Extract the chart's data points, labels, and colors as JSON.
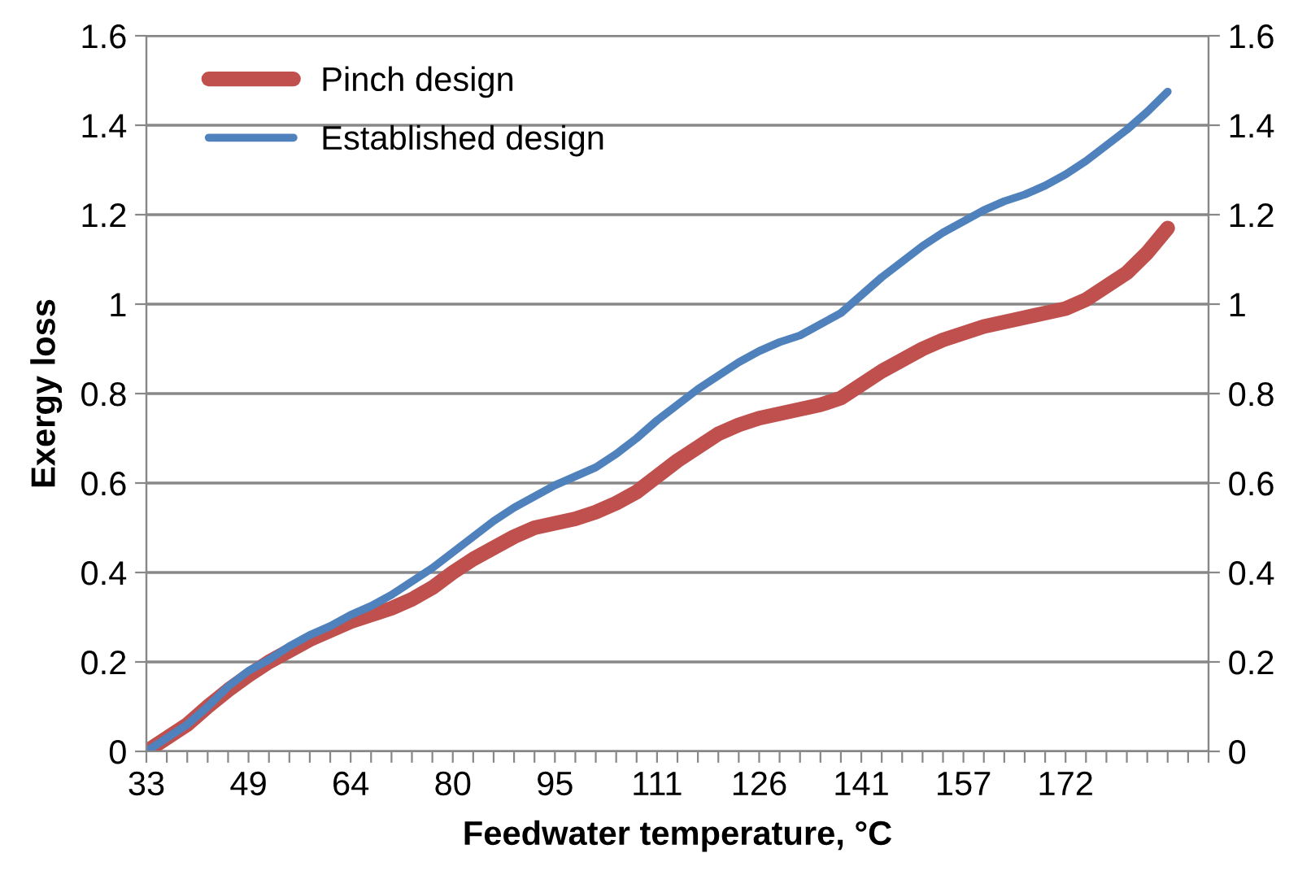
{
  "chart_data": {
    "type": "line",
    "xlabel": "Feedwater temperature, °C",
    "ylabel": "Exergy loss",
    "categories": [
      "33",
      null,
      null,
      null,
      null,
      "49",
      null,
      null,
      null,
      null,
      "64",
      null,
      null,
      null,
      null,
      "80",
      null,
      null,
      null,
      null,
      "95",
      null,
      null,
      null,
      null,
      "111",
      null,
      null,
      null,
      null,
      "126",
      null,
      null,
      null,
      null,
      "141",
      null,
      null,
      null,
      null,
      "157",
      null,
      null,
      null,
      null,
      "172",
      null,
      null,
      null,
      null,
      null,
      null,
      null
    ],
    "series": [
      {
        "name": "Pinch design",
        "color": "#c0504d",
        "values": [
          0,
          0.03,
          0.06,
          0.1,
          0.137,
          0.17,
          0.2,
          0.225,
          0.25,
          0.27,
          0.29,
          0.305,
          0.32,
          0.34,
          0.366,
          0.4,
          0.43,
          0.455,
          0.48,
          0.5,
          0.51,
          0.52,
          0.535,
          0.555,
          0.58,
          0.615,
          0.65,
          0.68,
          0.71,
          0.73,
          0.745,
          0.755,
          0.765,
          0.775,
          0.79,
          0.82,
          0.85,
          0.875,
          0.9,
          0.92,
          0.935,
          0.95,
          0.96,
          0.97,
          0.98,
          0.99,
          1.01,
          1.04,
          1.07,
          1.115,
          1.17,
          null,
          null
        ]
      },
      {
        "name": "Established design",
        "color": "#4f81bd",
        "values": [
          0,
          0.03,
          0.06,
          0.1,
          0.145,
          0.18,
          0.205,
          0.235,
          0.26,
          0.28,
          0.305,
          0.325,
          0.35,
          0.38,
          0.41,
          0.445,
          0.48,
          0.515,
          0.545,
          0.57,
          0.595,
          0.615,
          0.635,
          0.665,
          0.7,
          0.74,
          0.775,
          0.81,
          0.84,
          0.87,
          0.895,
          0.915,
          0.93,
          0.955,
          0.98,
          1.02,
          1.06,
          1.095,
          1.13,
          1.16,
          1.185,
          1.21,
          1.23,
          1.245,
          1.265,
          1.29,
          1.32,
          1.355,
          1.39,
          1.43,
          1.475,
          null,
          null
        ]
      }
    ],
    "ylim": [
      0,
      1.6
    ],
    "yticks": [
      0,
      0.2,
      0.4,
      0.6,
      0.8,
      1,
      1.2,
      1.4,
      1.6
    ],
    "y2lim": [
      0,
      1.6
    ],
    "y2ticks": [
      0,
      0.2,
      0.4,
      0.6,
      0.8,
      1,
      1.2,
      1.4,
      1.6
    ],
    "grid": "y",
    "legend": "top left",
    "marker": "none",
    "line_style": "solid"
  }
}
